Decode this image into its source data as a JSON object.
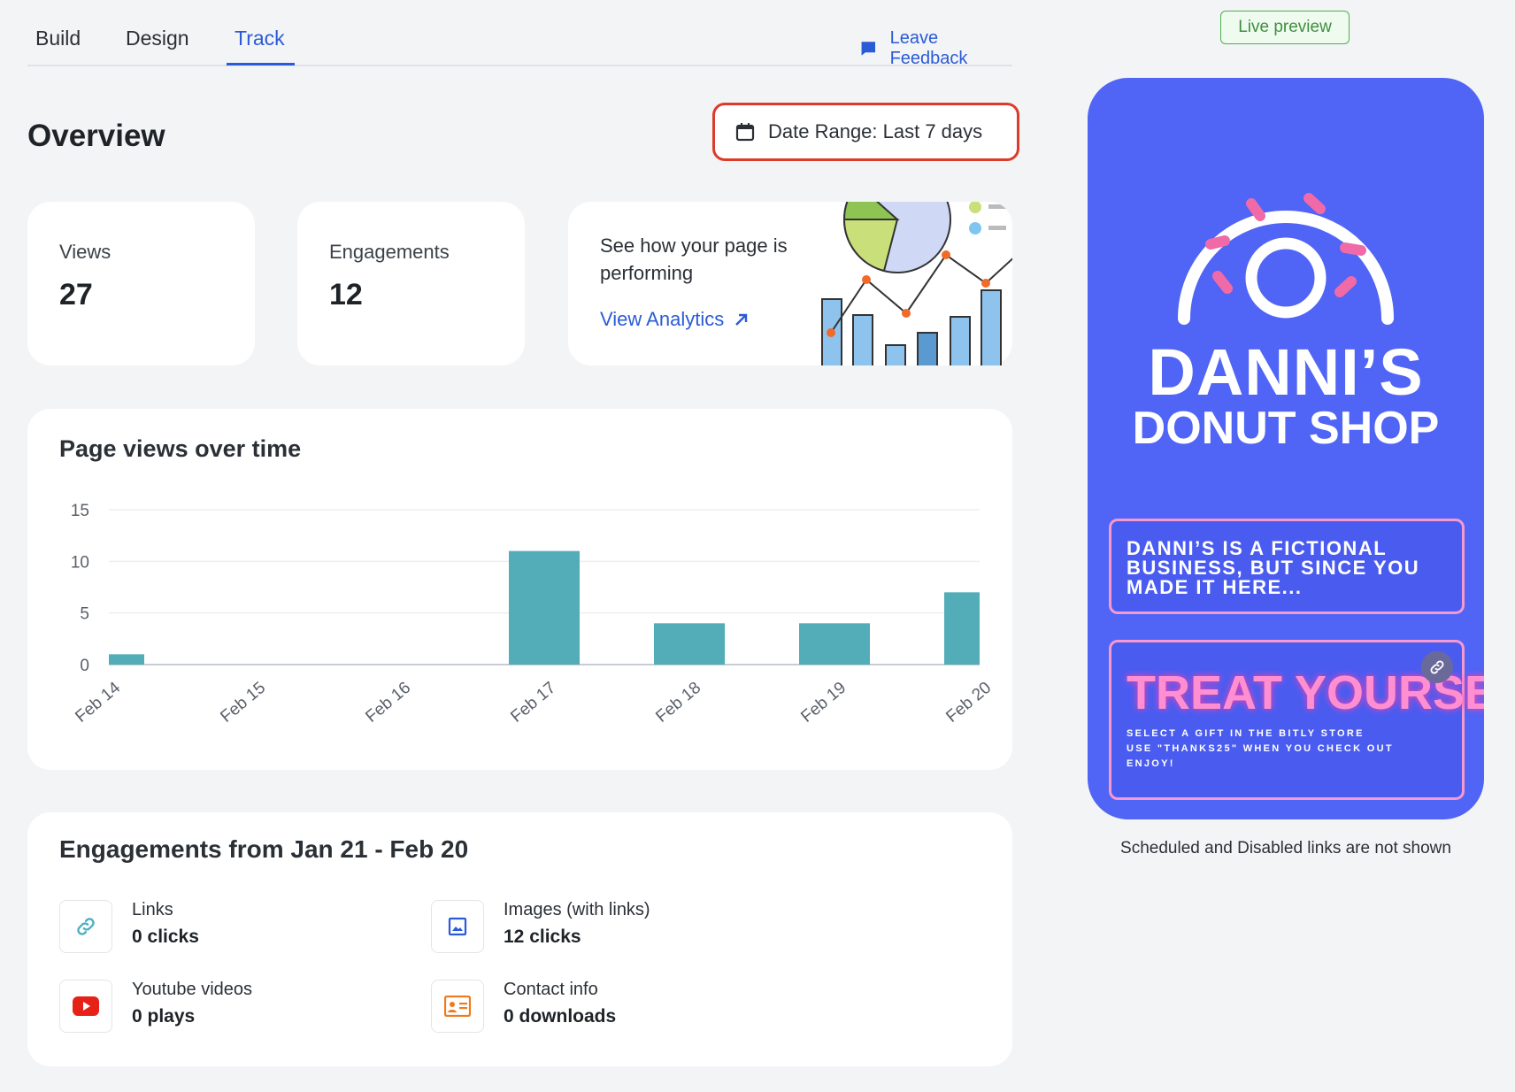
{
  "tabs": [
    {
      "label": "Build"
    },
    {
      "label": "Design"
    },
    {
      "label": "Track"
    }
  ],
  "feedback": {
    "label": "Leave Feedback"
  },
  "overview": {
    "title": "Overview",
    "date_range": "Date Range: Last 7 days"
  },
  "stats": {
    "views": {
      "label": "Views",
      "value": "27"
    },
    "engagements": {
      "label": "Engagements",
      "value": "12"
    }
  },
  "promo": {
    "text": "See how your page is performing",
    "link": "View Analytics"
  },
  "chart_card": {
    "title": "Page views over time"
  },
  "chart_data": {
    "type": "bar",
    "categories": [
      "Feb 14",
      "Feb 15",
      "Feb 16",
      "Feb 17",
      "Feb 18",
      "Feb 19",
      "Feb 20"
    ],
    "values": [
      1,
      0,
      0,
      11,
      4,
      4,
      7
    ],
    "y_ticks": [
      0,
      5,
      10,
      15
    ],
    "ylim": [
      0,
      15
    ],
    "color": "#52adb8",
    "grid": true
  },
  "engagements": {
    "title": "Engagements from Jan 21 - Feb 20",
    "items": [
      {
        "name": "Links",
        "value": "0 clicks",
        "icon": "link-icon"
      },
      {
        "name": "Images (with links)",
        "value": "12 clicks",
        "icon": "image-icon"
      },
      {
        "name": "Youtube videos",
        "value": "0 plays",
        "icon": "youtube-icon"
      },
      {
        "name": "Contact info",
        "value": "0 downloads",
        "icon": "contact-card-icon"
      }
    ]
  },
  "preview": {
    "badge": "Live preview",
    "shop_line1": "DANNI’S",
    "shop_line2": "DONUT SHOP",
    "box1": "DANNI’S IS A FICTIONAL BUSINESS, BUT SINCE YOU MADE IT HERE...",
    "treat_title": "TREAT YOURSELF",
    "treat_lines": [
      "SELECT A GIFT IN THE BITLY STORE",
      "USE \"THANKS25\" WHEN YOU CHECK OUT",
      "ENJOY!"
    ],
    "note": "Scheduled and Disabled links are not shown",
    "colors": {
      "phone_bg": "#5064f5",
      "accent_pink": "#f59ad0"
    }
  }
}
